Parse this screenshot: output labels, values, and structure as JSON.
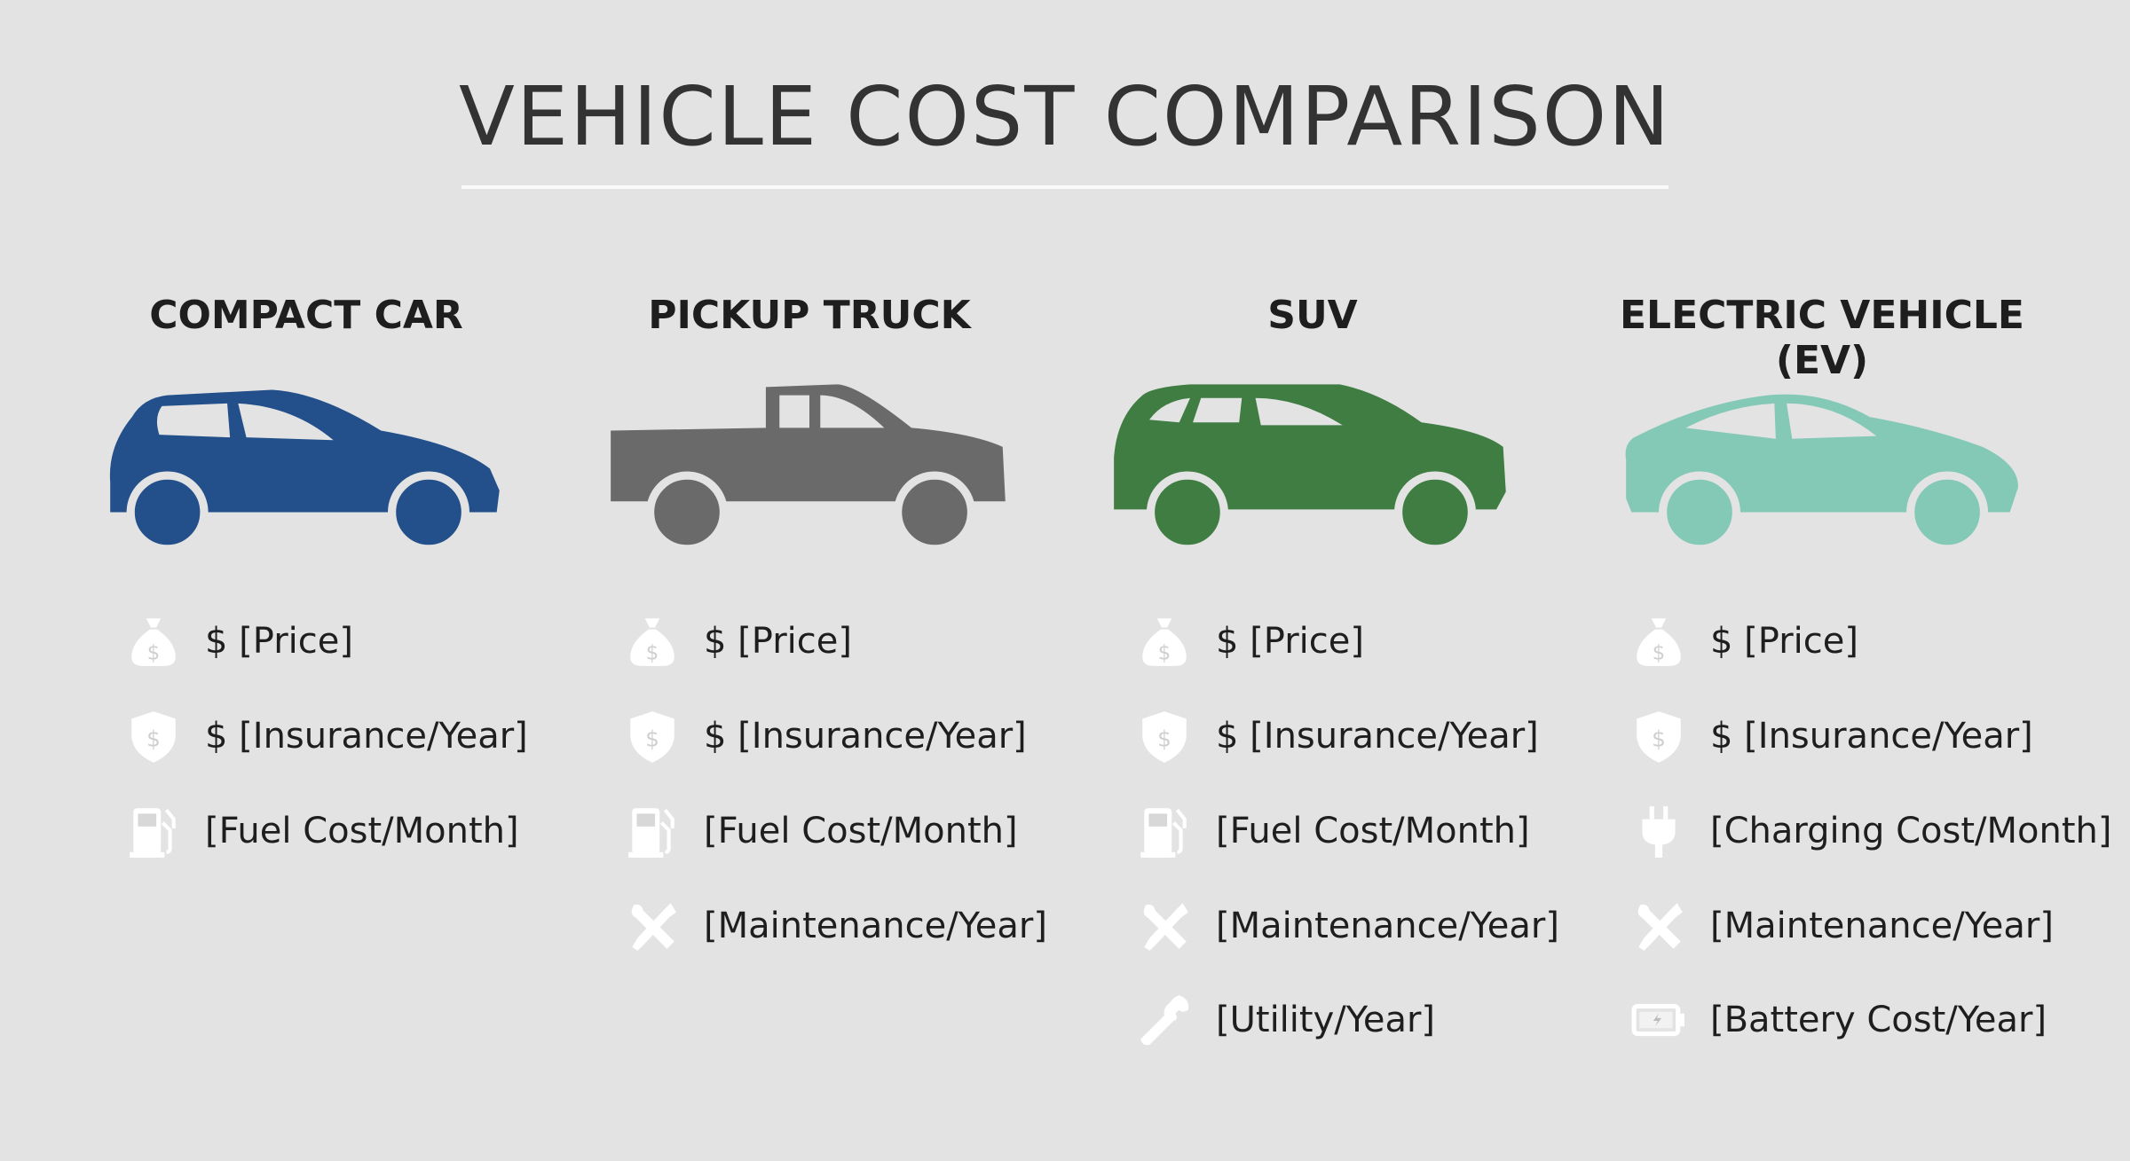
{
  "title": "VEHICLE COST COMPARISON",
  "colors": {
    "background": "#e3e3e3",
    "compact": "#23508a",
    "pickup": "#6a6a6a",
    "suv": "#3f7d43",
    "ev": "#84c8b6",
    "icon": "#ffffff"
  },
  "columns": [
    {
      "heading": "COMPACT CAR",
      "car_type": "hatchback",
      "color": "#23508a",
      "items": [
        {
          "icon": "money-bag-icon",
          "label": "$ [Price]"
        },
        {
          "icon": "shield-dollar-icon",
          "label": "$ [Insurance/Year]"
        },
        {
          "icon": "fuel-pump-icon",
          "label": "[Fuel Cost/Month]"
        }
      ]
    },
    {
      "heading": "PICKUP TRUCK",
      "car_type": "pickup",
      "color": "#6a6a6a",
      "items": [
        {
          "icon": "money-bag-icon",
          "label": "$ [Price]"
        },
        {
          "icon": "shield-dollar-icon",
          "label": "$ [Insurance/Year]"
        },
        {
          "icon": "fuel-pump-icon",
          "label": "[Fuel Cost/Month]"
        },
        {
          "icon": "wrench-screwdriver-icon",
          "label": "[Maintenance/Year]"
        }
      ]
    },
    {
      "heading": "SUV",
      "car_type": "suv",
      "color": "#3f7d43",
      "items": [
        {
          "icon": "money-bag-icon",
          "label": "$ [Price]"
        },
        {
          "icon": "shield-dollar-icon",
          "label": "$ [Insurance/Year]"
        },
        {
          "icon": "fuel-pump-icon",
          "label": "[Fuel Cost/Month]"
        },
        {
          "icon": "wrench-screwdriver-icon",
          "label": "[Maintenance/Year]"
        },
        {
          "icon": "wrench-icon",
          "label": "[Utility/Year]"
        }
      ]
    },
    {
      "heading": "ELECTRIC VEHICLE (EV)",
      "car_type": "sedan",
      "color": "#84c8b6",
      "items": [
        {
          "icon": "money-bag-icon",
          "label": "$ [Price]"
        },
        {
          "icon": "shield-dollar-icon",
          "label": "$ [Insurance/Year]"
        },
        {
          "icon": "plug-icon",
          "label": "[Charging Cost/Month]"
        },
        {
          "icon": "wrench-screwdriver-icon",
          "label": "[Maintenance/Year]"
        },
        {
          "icon": "battery-icon",
          "label": "[Battery Cost/Year]"
        }
      ]
    }
  ]
}
